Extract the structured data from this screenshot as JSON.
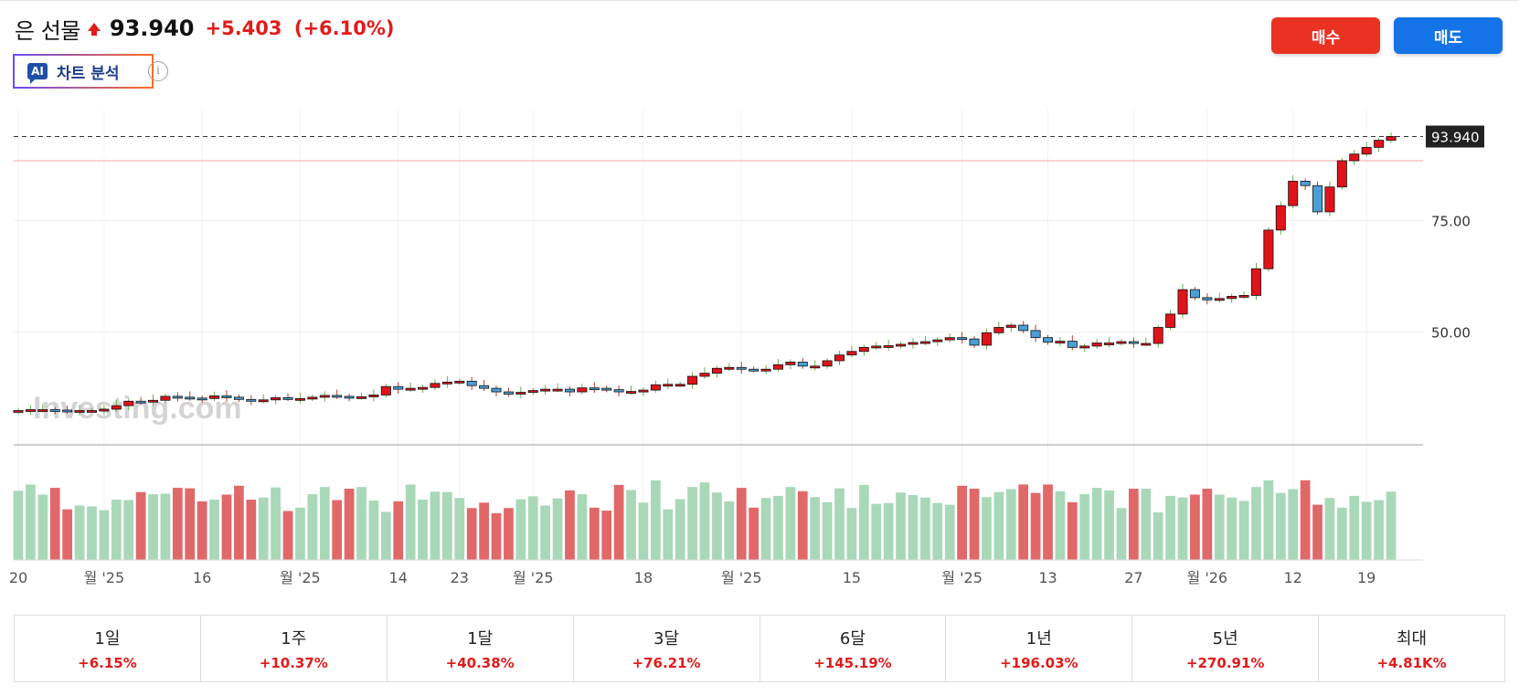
{
  "header": {
    "title": "은 선물",
    "price": "93.940",
    "change": "+5.403",
    "change_pct": "(+6.10%)",
    "direction_icon": "arrow-up-icon",
    "up_color": "#e21b1b"
  },
  "ai_button": {
    "badge": "AI",
    "label": "차트 분석"
  },
  "info_icon": {
    "glyph": "i"
  },
  "actions": {
    "buy_label": "매수",
    "sell_label": "매도",
    "buy_color": "#ea3223",
    "sell_color": "#1473e6"
  },
  "periods": [
    {
      "label": "1일",
      "value": "+6.15%"
    },
    {
      "label": "1주",
      "value": "+10.37%"
    },
    {
      "label": "1달",
      "value": "+40.38%"
    },
    {
      "label": "3달",
      "value": "+76.21%"
    },
    {
      "label": "6달",
      "value": "+145.19%"
    },
    {
      "label": "1년",
      "value": "+196.03%"
    },
    {
      "label": "5년",
      "value": "+270.91%"
    },
    {
      "label": "최대",
      "value": "+4.81K%"
    }
  ],
  "chart_data": {
    "type": "candlestick",
    "y_ticks": [
      "75.00",
      "50.00"
    ],
    "y_tick_values": [
      75,
      50
    ],
    "ylim": [
      25,
      100
    ],
    "current_price_label": "93.940",
    "current_price": 93.94,
    "reference_line": 88.5,
    "x_tick_labels": [
      "20",
      "월 '25",
      "16",
      "월 '25",
      "14",
      "23",
      "월 '25",
      "18",
      "월 '25",
      "15",
      "월 '25",
      "13",
      "27",
      "월 '26",
      "12",
      "19"
    ],
    "x_tick_index": [
      0,
      7,
      15,
      23,
      31,
      36,
      42,
      51,
      59,
      68,
      77,
      84,
      91,
      97,
      104,
      110
    ],
    "watermark": "Investing.com",
    "bull_color": "#e0131b",
    "bear_color": "#4a9fd8",
    "volume_up_color": "#a8d8b8",
    "volume_down_color": "#e06868",
    "closes": [
      32.3,
      32.5,
      32.5,
      32.4,
      32.2,
      32.3,
      32.3,
      32.6,
      33.4,
      34.4,
      34.3,
      34.6,
      35.5,
      35.3,
      35.1,
      35.0,
      35.6,
      35.3,
      34.8,
      34.5,
      34.7,
      35.2,
      35.0,
      35.0,
      35.3,
      35.7,
      35.5,
      35.4,
      35.4,
      35.8,
      37.7,
      37.1,
      37.3,
      37.5,
      38.4,
      38.7,
      38.9,
      37.9,
      37.3,
      36.5,
      36.0,
      36.4,
      36.8,
      37.1,
      37.1,
      36.5,
      37.4,
      37.3,
      37.0,
      36.5,
      36.6,
      36.9,
      38.1,
      38.2,
      38.2,
      40.0,
      40.7,
      41.8,
      42.0,
      41.6,
      41.5,
      41.6,
      42.6,
      43.2,
      42.3,
      42.3,
      43.5,
      44.8,
      45.6,
      46.5,
      46.8,
      46.9,
      47.2,
      47.6,
      47.8,
      48.2,
      48.7,
      48.4,
      47.0,
      49.8,
      51.0,
      51.5,
      50.3,
      48.7,
      47.7,
      47.9,
      46.5,
      46.8,
      47.5,
      47.5,
      47.8,
      47.4,
      47.4,
      51.0,
      54.0,
      59.5,
      57.7,
      57.2,
      57.5,
      58.0,
      58.2,
      64.2,
      72.9,
      78.4,
      83.9,
      82.9,
      77.0,
      82.6,
      88.5,
      90.0,
      91.5,
      93.1,
      93.94
    ],
    "volumes": [
      16.4,
      17.9,
      15.5,
      17.1,
      12.0,
      12.9,
      12.7,
      11.8,
      14.3,
      14.2,
      16.1,
      15.6,
      15.7,
      17.1,
      17.0,
      13.9,
      14.3,
      15.5,
      17.6,
      14.3,
      14.8,
      17.2,
      11.6,
      12.4,
      15.6,
      17.3,
      14.2,
      16.9,
      17.3,
      14.1,
      11.4,
      13.9,
      17.9,
      14.3,
      16.2,
      16.1,
      14.7,
      12.3,
      13.6,
      11.1,
      12.3,
      14.4,
      15.1,
      12.9,
      14.6,
      16.5,
      15.6,
      12.4,
      11.7,
      17.8,
      16.6,
      13.6,
      18.9,
      12.0,
      14.4,
      17.3,
      18.4,
      16.0,
      13.9,
      17.1,
      12.4,
      14.7,
      15.2,
      17.3,
      16.3,
      14.9,
      13.7,
      17.0,
      12.3,
      17.8,
      13.3,
      13.5,
      16.0,
      15.4,
      14.8,
      13.5,
      13.1,
      17.6,
      16.9,
      14.9,
      16.1,
      16.8,
      17.9,
      15.9,
      17.9,
      16.3,
      13.7,
      15.6,
      17.1,
      16.5,
      12.3,
      16.9,
      16.9,
      11.3,
      15.2,
      14.8,
      15.5,
      16.9,
      15.5,
      14.8,
      14.0,
      17.3,
      18.9,
      15.9,
      16.8,
      18.9,
      13.1,
      14.7,
      12.4,
      15.2,
      13.8,
      14.2,
      16.2
    ]
  }
}
